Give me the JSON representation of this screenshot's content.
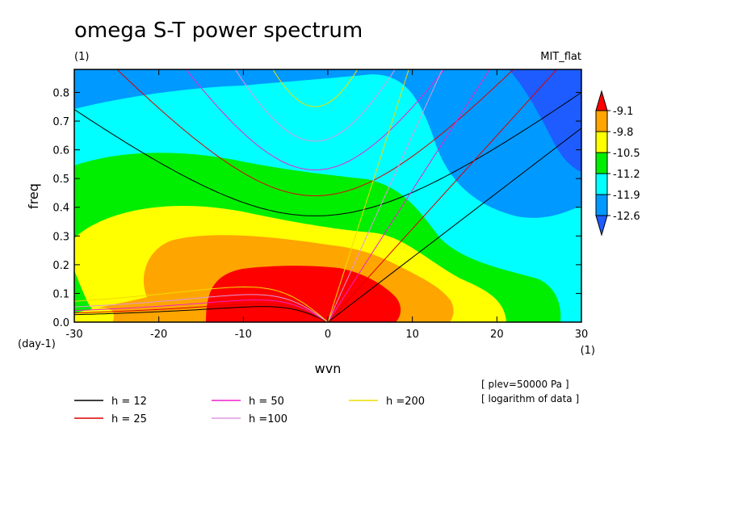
{
  "title": "omega S-T power spectrum",
  "subtitle_left": "(1)",
  "subtitle_right": "MIT_flat",
  "ylabel": "freq",
  "yunit": "(day-1)",
  "xlabel": "wvn",
  "xunit": "(1)",
  "notes": [
    "[ plev=50000 Pa ]",
    "[ logarithm of data ]"
  ],
  "colors": {
    "bg_cyan": "#00ffff",
    "blue_mid": "#0099ff",
    "blue_dark": "#1e5cff",
    "green": "#00ee00",
    "yellow": "#ffff00",
    "orange": "#ffa500",
    "red": "#ff0000"
  },
  "chart_data": {
    "type": "contour",
    "x_range": [
      -30,
      30
    ],
    "y_range": [
      0,
      0.88
    ],
    "x_ticks": [
      "-30",
      "-20",
      "-10",
      "0",
      "10",
      "20",
      "30"
    ],
    "y_ticks": [
      "0.0",
      "0.1",
      "0.2",
      "0.3",
      "0.4",
      "0.5",
      "0.6",
      "0.7",
      "0.8"
    ],
    "colorbar": {
      "labels": [
        "-9.1",
        "-9.8",
        "-10.5",
        "-11.2",
        "-11.9",
        "-12.6"
      ],
      "colors": [
        "#ff0000",
        "#ffa500",
        "#ffff00",
        "#00ee00",
        "#00ffff",
        "#0099ff",
        "#1e5cff"
      ]
    },
    "dispersion_curves": [
      {
        "name": "h = 12",
        "label": "h = 12",
        "h": 12,
        "color": "#000000"
      },
      {
        "name": "h = 25",
        "label": "h = 25",
        "h": 25,
        "color": "#dd0000"
      },
      {
        "name": "h = 50",
        "label": "h = 50",
        "h": 50,
        "color": "#ee22cc"
      },
      {
        "name": "h =100",
        "label": "h =100",
        "h": 100,
        "color": "#dd99dd"
      },
      {
        "name": "h =200",
        "label": "h =200",
        "h": 200,
        "color": "#eedd00"
      }
    ],
    "gravity_wave_minimum_freq": {
      "h = 12": 0.37,
      "h = 25": 0.44,
      "h = 50": 0.53,
      "h =100": 0.63,
      "h =200": 0.75
    }
  }
}
